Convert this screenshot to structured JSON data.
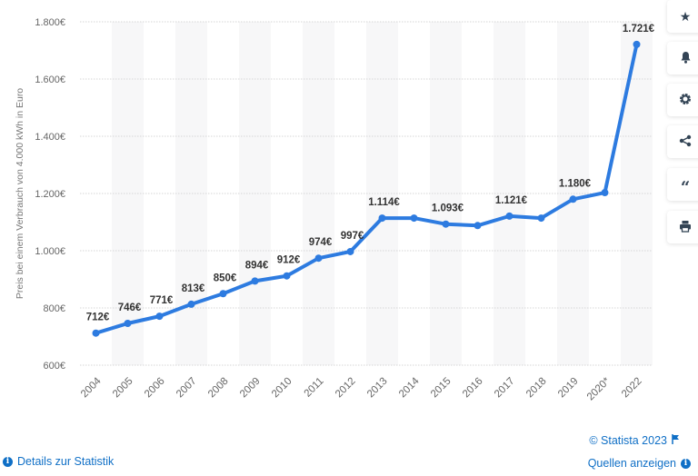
{
  "chart_data": {
    "type": "line",
    "title": "",
    "ylabel": "Preis bei einem Verbrauch von 4.000 kWh in Euro",
    "xlabel": "",
    "categories": [
      "2004",
      "2005",
      "2006",
      "2007",
      "2008",
      "2009",
      "2010",
      "2011",
      "2012",
      "2013",
      "2014",
      "2015",
      "2016",
      "2017",
      "2018",
      "2019",
      "2020*",
      "2022"
    ],
    "values": [
      712,
      746,
      771,
      813,
      850,
      894,
      912,
      974,
      997,
      1114,
      1114,
      1093,
      1088,
      1121,
      1114,
      1180,
      1203,
      1721
    ],
    "data_labels": [
      "712€",
      "746€",
      "771€",
      "813€",
      "850€",
      "894€",
      "912€",
      "974€",
      "997€",
      "1.114€",
      null,
      "1.093€",
      null,
      "1.121€",
      null,
      "1.180€",
      null,
      "1.721€"
    ],
    "ylim": [
      600,
      1800
    ],
    "yticks": [
      600,
      800,
      1000,
      1200,
      1400,
      1600,
      1800
    ],
    "ytick_labels": [
      "600€",
      "800€",
      "1.000€",
      "1.200€",
      "1.400€",
      "1.600€",
      "1.800€"
    ],
    "grid": true,
    "color": "#2d7be0"
  },
  "sidebar": {
    "icons": [
      "star-icon",
      "bell-icon",
      "gear-icon",
      "share-icon",
      "quote-icon",
      "print-icon"
    ]
  },
  "footer": {
    "copyright": "© Statista 2023",
    "details": "Details zur Statistik",
    "sources": "Quellen anzeigen",
    "info_glyph": "i"
  },
  "colors": {
    "link": "#0f6fc6",
    "line": "#2d7be0"
  }
}
